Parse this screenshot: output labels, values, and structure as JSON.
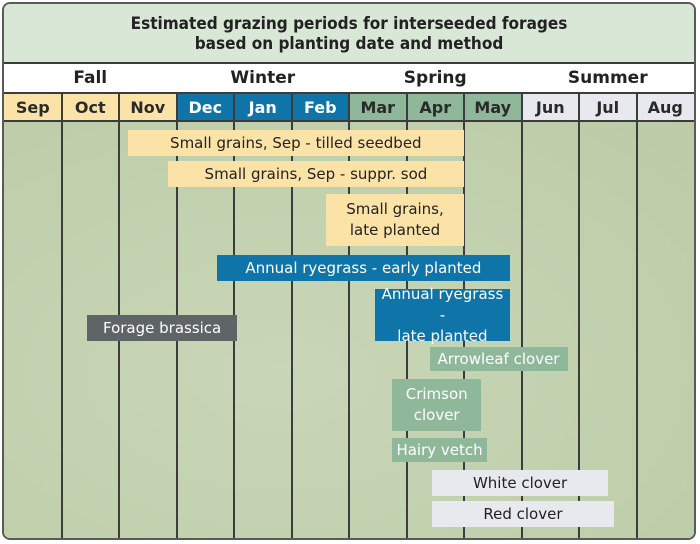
{
  "chart_data": {
    "type": "gantt",
    "title_lines": [
      "Estimated grazing periods for interseeded forages",
      "based on planting date and method"
    ],
    "seasons": [
      "Fall",
      "Winter",
      "Spring",
      "Summer"
    ],
    "months": [
      {
        "label": "Sep",
        "season": "Fall"
      },
      {
        "label": "Oct",
        "season": "Fall"
      },
      {
        "label": "Nov",
        "season": "Fall"
      },
      {
        "label": "Dec",
        "season": "Winter"
      },
      {
        "label": "Jan",
        "season": "Winter"
      },
      {
        "label": "Feb",
        "season": "Winter"
      },
      {
        "label": "Mar",
        "season": "Spring"
      },
      {
        "label": "Apr",
        "season": "Spring"
      },
      {
        "label": "May",
        "season": "Spring"
      },
      {
        "label": "Jun",
        "season": "Summer"
      },
      {
        "label": "Jul",
        "season": "Summer"
      },
      {
        "label": "Aug",
        "season": "Summer"
      }
    ],
    "season_colors": {
      "Fall": "#fbe3a8",
      "Winter": "#0f74a8",
      "Spring": "#8fb89a",
      "Summer": "#e8e8ef"
    },
    "bars": [
      {
        "lines": [
          "Small grains, Sep - tilled seedbed"
        ],
        "start": 2.15,
        "end": 8.0,
        "category": "Fall"
      },
      {
        "lines": [
          "Small grains, Sep - suppr. sod"
        ],
        "start": 2.85,
        "end": 8.0,
        "category": "Fall"
      },
      {
        "lines": [
          "Small grains,",
          "late planted"
        ],
        "start": 5.6,
        "end": 8.0,
        "category": "Fall"
      },
      {
        "lines": [
          "Annual ryegrass - early planted"
        ],
        "start": 3.7,
        "end": 8.8,
        "category": "Winter"
      },
      {
        "lines": [
          "Annual ryegrass -",
          "late planted"
        ],
        "start": 6.45,
        "end": 8.8,
        "category": "Winter"
      },
      {
        "lines": [
          "Forage brassica"
        ],
        "start": 1.45,
        "end": 4.05,
        "category": "Gray"
      },
      {
        "lines": [
          "Arrowleaf clover"
        ],
        "start": 7.4,
        "end": 9.8,
        "category": "Spring"
      },
      {
        "lines": [
          "Crimson",
          "clover"
        ],
        "start": 6.75,
        "end": 8.3,
        "category": "Spring"
      },
      {
        "lines": [
          "Hairy vetch"
        ],
        "start": 6.75,
        "end": 8.4,
        "category": "Spring"
      },
      {
        "lines": [
          "White clover"
        ],
        "start": 7.45,
        "end": 10.5,
        "category": "Summer"
      },
      {
        "lines": [
          "Red clover"
        ],
        "start": 7.45,
        "end": 10.6,
        "category": "Summer"
      }
    ],
    "bar_colors": {
      "Fall": "#fbe3a8",
      "Winter": "#0f74a8",
      "Spring": "#8fb89a",
      "Summer": "#e8e8ef",
      "Gray": "#5f6466"
    }
  }
}
